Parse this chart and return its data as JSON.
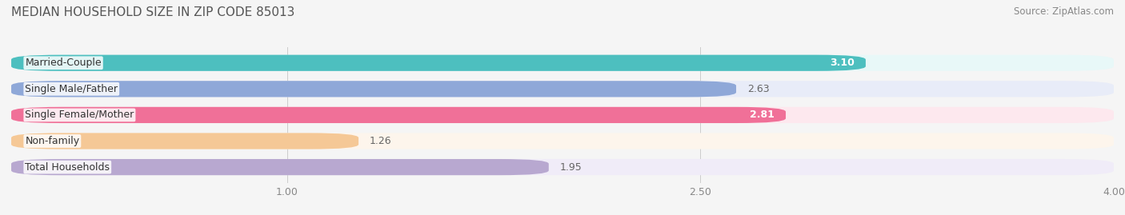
{
  "title": "MEDIAN HOUSEHOLD SIZE IN ZIP CODE 85013",
  "source": "Source: ZipAtlas.com",
  "categories": [
    "Married-Couple",
    "Single Male/Father",
    "Single Female/Mother",
    "Non-family",
    "Total Households"
  ],
  "values": [
    3.1,
    2.63,
    2.81,
    1.26,
    1.95
  ],
  "bar_colors": [
    "#4DBFBF",
    "#8FA8D8",
    "#F07098",
    "#F5C896",
    "#B8A8D0"
  ],
  "bar_bg_colors": [
    "#E8F8F8",
    "#E8ECF8",
    "#FDE8EE",
    "#FDF5EC",
    "#F0ECF8"
  ],
  "label_colors": [
    "#FFFFFF",
    "#555555",
    "#FFFFFF",
    "#555555",
    "#555555"
  ],
  "xlim": [
    0,
    4.0
  ],
  "xticks": [
    1.0,
    2.5,
    4.0
  ],
  "background_color": "#F5F5F5",
  "bar_height": 0.62,
  "title_fontsize": 11,
  "source_fontsize": 8.5,
  "label_fontsize": 9,
  "category_fontsize": 9,
  "tick_fontsize": 9
}
